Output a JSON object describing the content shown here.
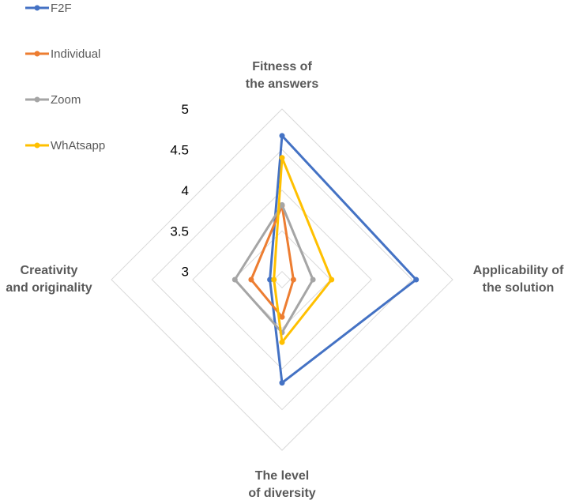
{
  "chart_data": {
    "type": "radar",
    "axes": [
      {
        "label_lines": [
          "Fitness of",
          "the answers"
        ]
      },
      {
        "label_lines": [
          "Applicability of",
          "the solution"
        ]
      },
      {
        "label_lines": [
          "The level",
          "of diversity"
        ]
      },
      {
        "label_lines": [
          "Creativity",
          "and originality"
        ]
      }
    ],
    "range": [
      2.9,
      5
    ],
    "ticks": [
      "3",
      "3.5",
      "4",
      "4.5",
      "5"
    ],
    "tick_values": [
      3,
      3.5,
      4,
      4.5,
      5
    ],
    "legend_position": "top-left",
    "series": [
      {
        "name": "F2F",
        "color": "#4472C4",
        "values": [
          4.67,
          4.55,
          4.17,
          3.05
        ]
      },
      {
        "name": "Individual",
        "color": "#ED7D31",
        "values": [
          3.81,
          3.04,
          3.36,
          3.28
        ]
      },
      {
        "name": "Zoom",
        "color": "#A5A5A5",
        "values": [
          3.82,
          3.28,
          3.55,
          3.48
        ]
      },
      {
        "name": "WhAtsapp",
        "color": "#FFC000",
        "values": [
          4.4,
          3.51,
          3.67,
          3.0
        ]
      }
    ]
  }
}
